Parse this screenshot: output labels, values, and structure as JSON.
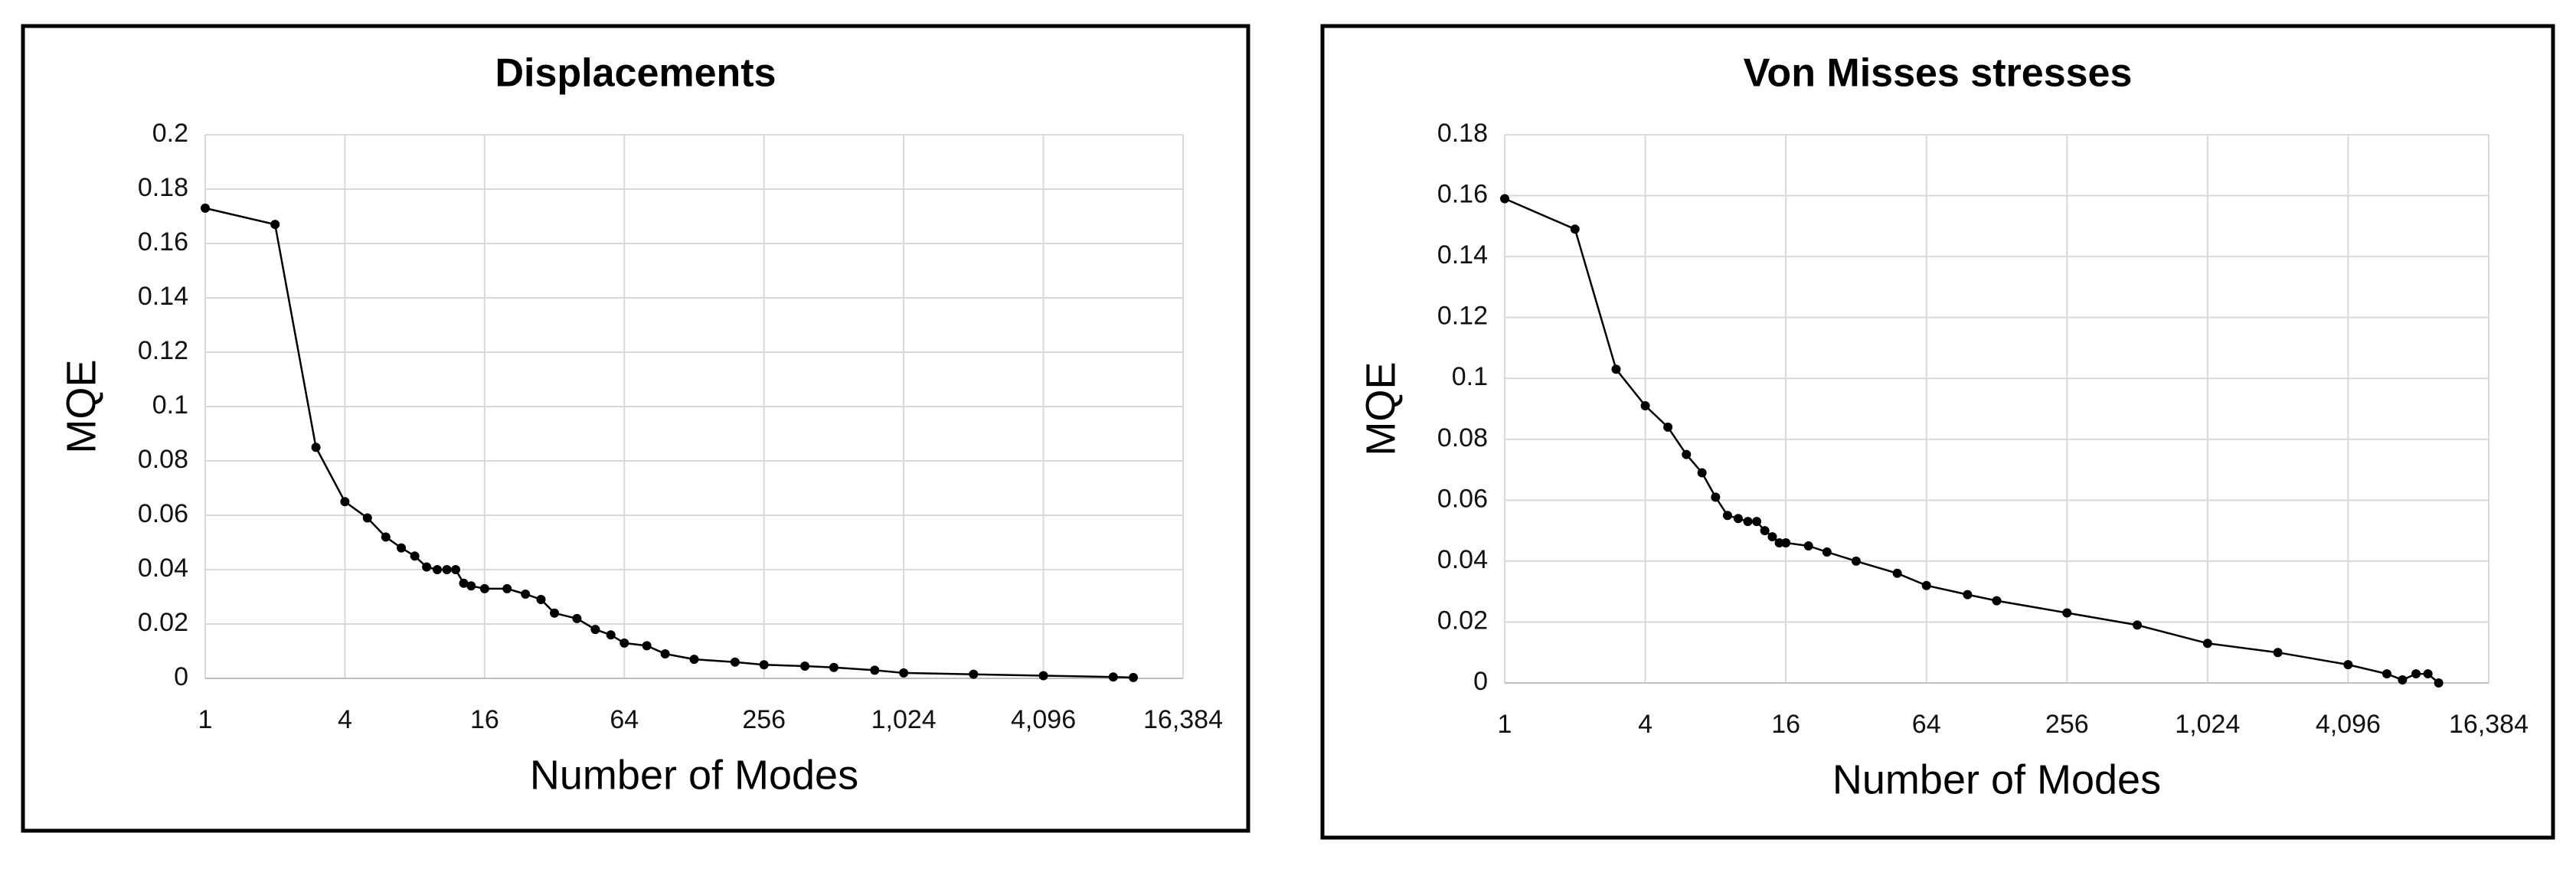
{
  "chart_data": [
    {
      "type": "line",
      "title": "Displacements",
      "xlabel": "Number of Modes",
      "ylabel": "MQE",
      "xscale": "log",
      "xbase": 2,
      "grid": true,
      "color": "#000000",
      "x": [
        1,
        2,
        3,
        4,
        5,
        6,
        7,
        8,
        9,
        10,
        11,
        12,
        13,
        14,
        16,
        20,
        24,
        28,
        32,
        40,
        48,
        56,
        64,
        80,
        96,
        128,
        192,
        256,
        384,
        512,
        768,
        1024,
        2048,
        4096,
        8192,
        10000
      ],
      "values": [
        0.173,
        0.167,
        0.085,
        0.065,
        0.059,
        0.052,
        0.048,
        0.045,
        0.041,
        0.04,
        0.04,
        0.04,
        0.035,
        0.034,
        0.033,
        0.033,
        0.031,
        0.029,
        0.024,
        0.022,
        0.018,
        0.016,
        0.013,
        0.012,
        0.009,
        0.007,
        0.006,
        0.005,
        0.0045,
        0.004,
        0.003,
        0.002,
        0.0015,
        0.001,
        0.0005,
        0.0003
      ],
      "xlim": [
        1,
        16384
      ],
      "xticks": [
        1,
        4,
        16,
        64,
        256,
        {
          "value": 1024,
          "label": "1,024"
        },
        {
          "value": 4096,
          "label": "4,096"
        },
        {
          "value": 16384,
          "label": "16,384"
        }
      ],
      "ylim": [
        0,
        0.2
      ],
      "yticks": [
        0,
        0.02,
        0.04,
        0.06,
        0.08,
        0.1,
        0.12,
        0.14,
        0.16,
        0.18,
        0.2
      ]
    },
    {
      "type": "line",
      "title": "Von Misses stresses",
      "xlabel": "Number of Modes",
      "ylabel": "MQE",
      "xscale": "log",
      "xbase": 2,
      "grid": true,
      "color": "#000000",
      "x": [
        1,
        2,
        3,
        4,
        5,
        6,
        7,
        8,
        9,
        10,
        11,
        12,
        13,
        14,
        15,
        16,
        20,
        24,
        32,
        48,
        64,
        96,
        128,
        256,
        512,
        1024,
        2048,
        4096,
        6000,
        7000,
        8000,
        9000,
        10000
      ],
      "values": [
        0.159,
        0.149,
        0.103,
        0.091,
        0.084,
        0.075,
        0.069,
        0.061,
        0.055,
        0.054,
        0.053,
        0.053,
        0.05,
        0.048,
        0.046,
        0.046,
        0.045,
        0.043,
        0.04,
        0.036,
        0.032,
        0.029,
        0.027,
        0.023,
        0.019,
        0.013,
        0.01,
        0.006,
        0.003,
        0.001,
        0.003,
        0.003,
        0.0
      ],
      "xlim": [
        1,
        16384
      ],
      "xticks": [
        1,
        4,
        16,
        64,
        256,
        {
          "value": 1024,
          "label": "1,024"
        },
        {
          "value": 4096,
          "label": "4,096"
        },
        {
          "value": 16384,
          "label": "16,384"
        }
      ],
      "ylim": [
        0,
        0.18
      ],
      "yticks": [
        0,
        0.02,
        0.04,
        0.06,
        0.08,
        0.1,
        0.12,
        0.14,
        0.16,
        0.18
      ]
    }
  ]
}
